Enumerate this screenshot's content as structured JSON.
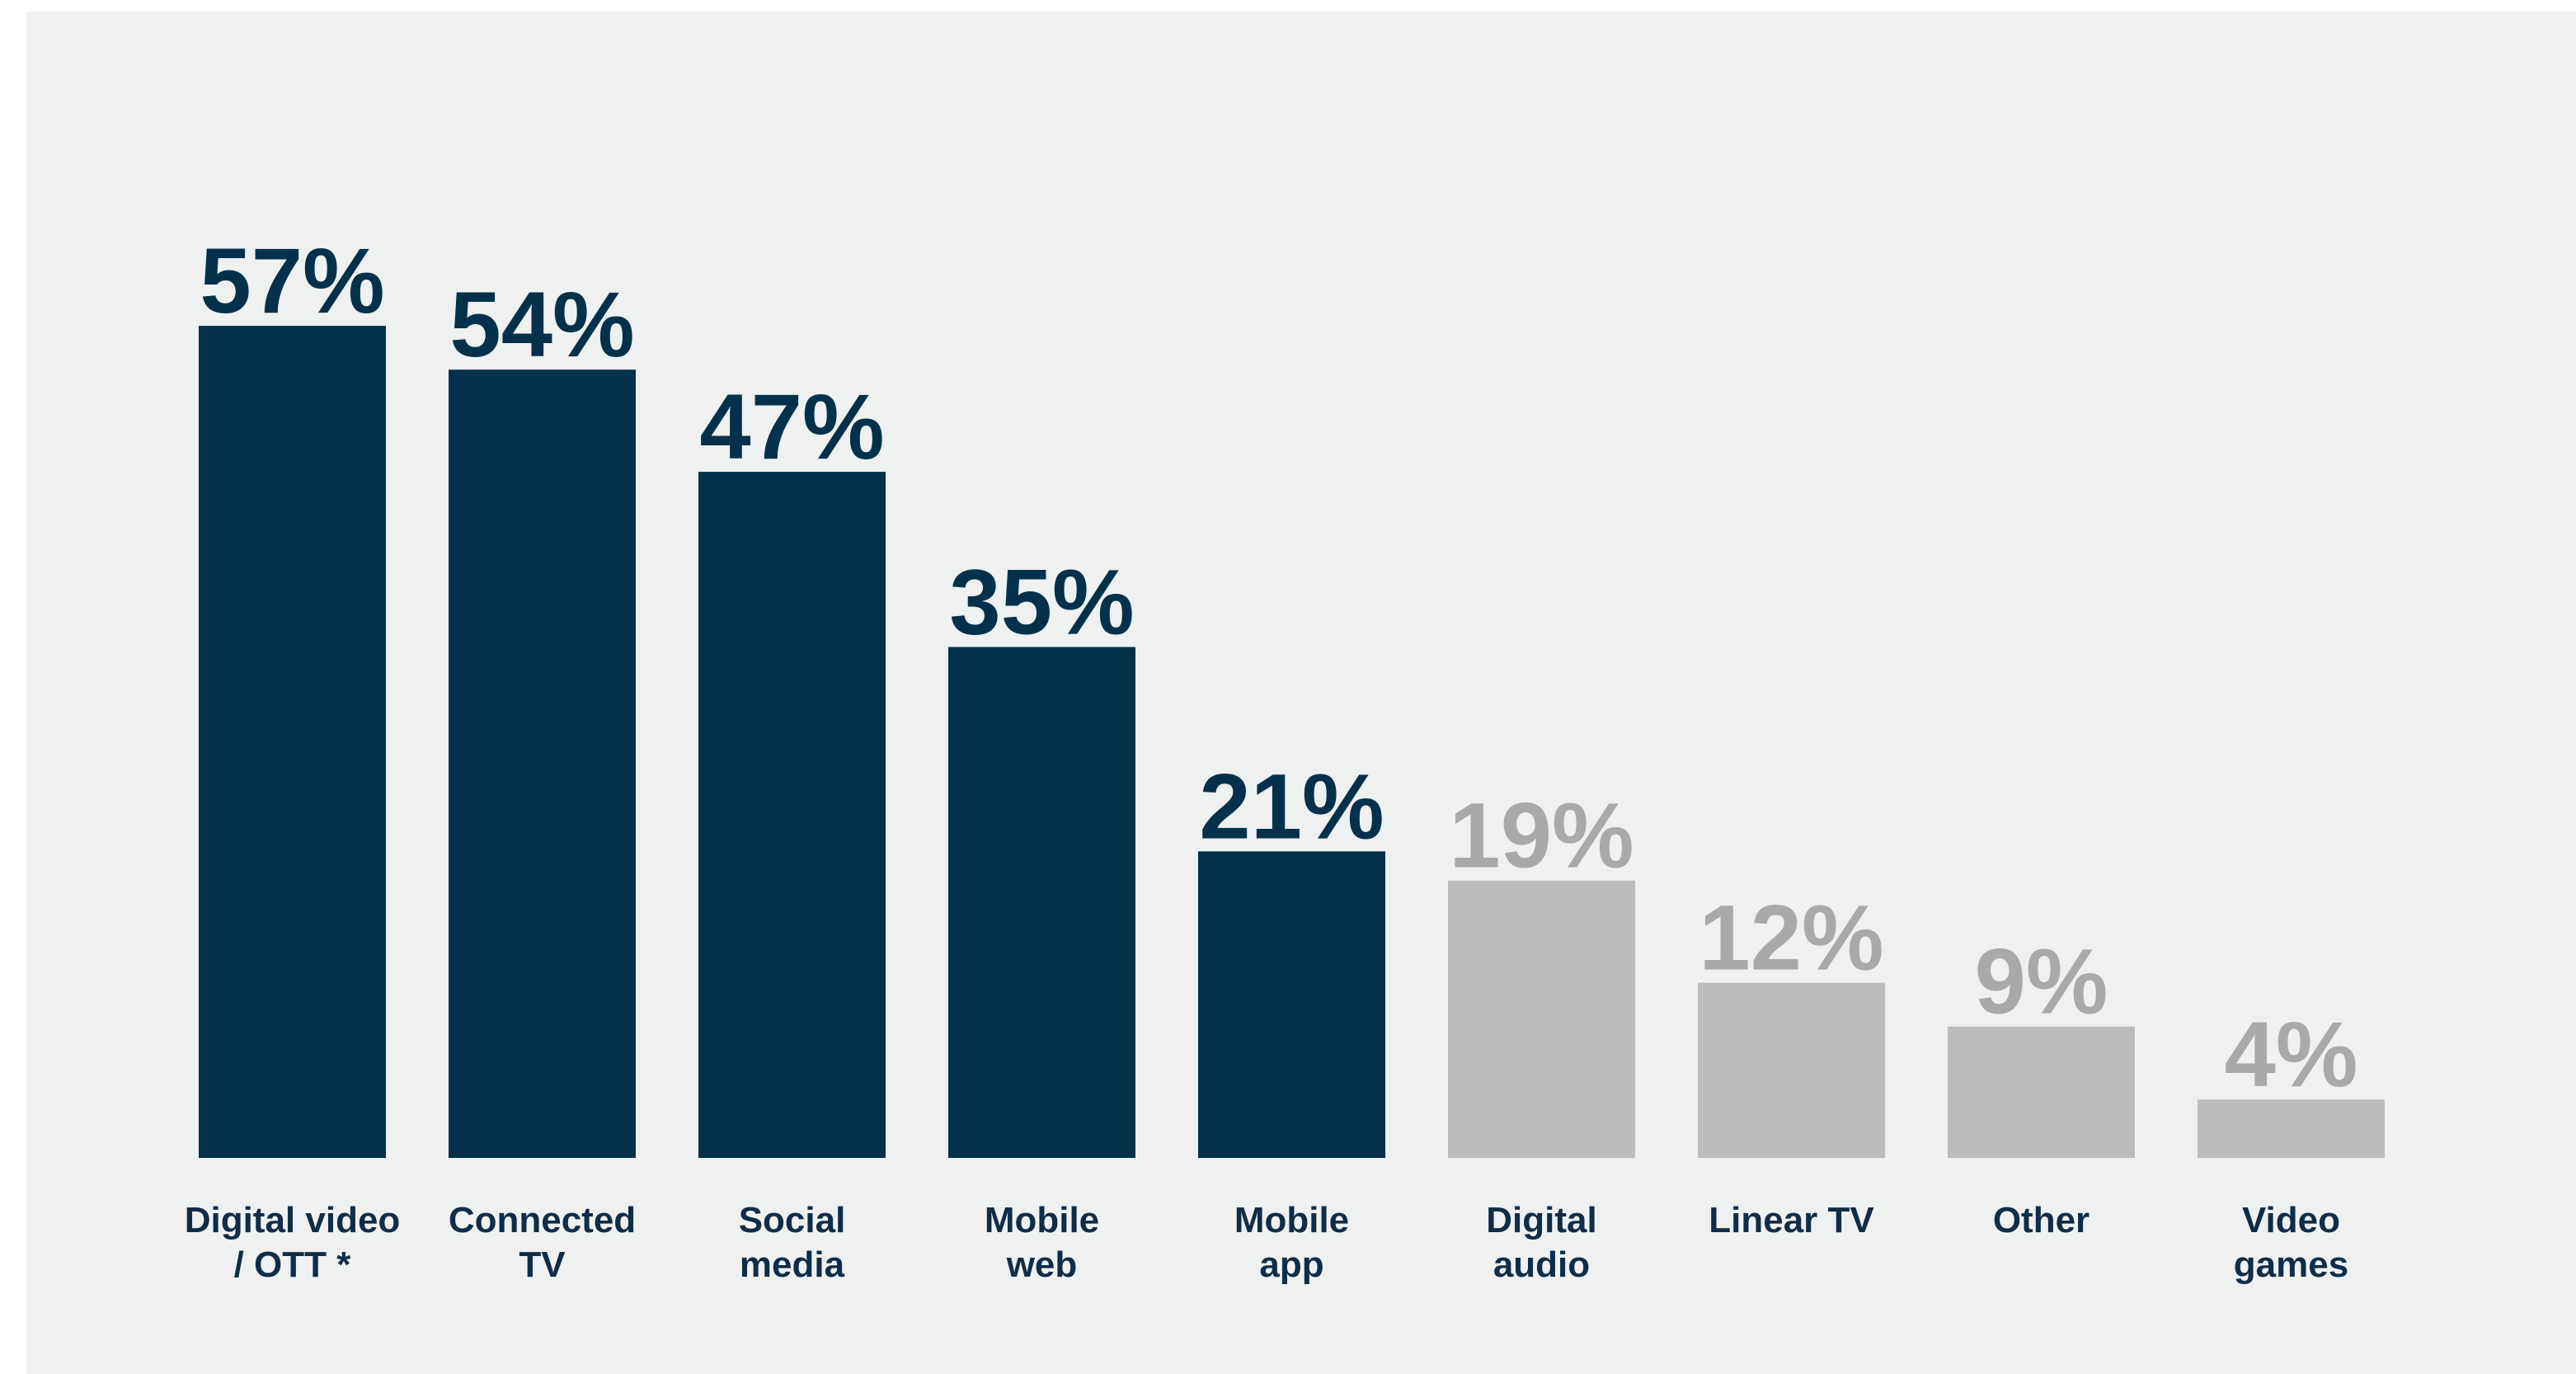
{
  "chart_data": {
    "type": "bar",
    "title": "",
    "xlabel": "",
    "ylabel": "",
    "ylim": [
      0,
      60
    ],
    "grid": false,
    "categories": [
      [
        "Digital video",
        "/ OTT *"
      ],
      [
        "Connected",
        "TV"
      ],
      [
        "Social",
        "media"
      ],
      [
        "Mobile",
        "web"
      ],
      [
        "Mobile",
        "app"
      ],
      [
        "Digital",
        "audio"
      ],
      [
        "Linear TV"
      ],
      [
        "Other"
      ],
      [
        "Video",
        "games"
      ]
    ],
    "values": [
      57,
      54,
      47,
      35,
      21,
      19,
      12,
      9,
      4
    ],
    "value_labels": [
      "57%",
      "54%",
      "47%",
      "35%",
      "21%",
      "19%",
      "12%",
      "9%",
      "4%"
    ],
    "highlighted": [
      true,
      true,
      true,
      true,
      true,
      false,
      false,
      false,
      false
    ],
    "colors": {
      "highlight": "#03314b",
      "muted": "#bcbcbd",
      "muted_label": "#a9a9aa",
      "category_text": "#0f2d48",
      "background": "#eff0f0"
    }
  }
}
